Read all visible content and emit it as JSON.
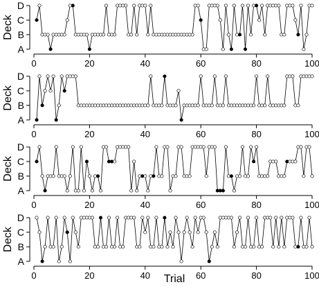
{
  "figure": {
    "ylabel": "Deck",
    "xlabel": "Trial"
  },
  "chart_data": [
    {
      "type": "line",
      "ylabel": "Deck",
      "xlabel": "",
      "y_categories": [
        "A",
        "B",
        "C",
        "D"
      ],
      "x_ticks": [
        0,
        20,
        40,
        60,
        80,
        100
      ],
      "xlim": [
        0,
        100
      ],
      "legend": "none",
      "marker_fill_legend": "filled = dark point, open = white point",
      "x": [
        1,
        2,
        3,
        4,
        5,
        6,
        7,
        8,
        9,
        10,
        11,
        12,
        13,
        14,
        15,
        16,
        17,
        18,
        19,
        20,
        21,
        22,
        23,
        24,
        25,
        26,
        27,
        28,
        29,
        30,
        31,
        32,
        33,
        34,
        35,
        36,
        37,
        38,
        39,
        40,
        41,
        42,
        43,
        44,
        45,
        46,
        47,
        48,
        49,
        50,
        51,
        52,
        53,
        54,
        55,
        56,
        57,
        58,
        59,
        60,
        61,
        62,
        63,
        64,
        65,
        66,
        67,
        68,
        69,
        70,
        71,
        72,
        73,
        74,
        75,
        76,
        77,
        78,
        79,
        80,
        81,
        82,
        83,
        84,
        85,
        86,
        87,
        88,
        89,
        90,
        91,
        92,
        93,
        94,
        95,
        96,
        97,
        98,
        99,
        100
      ],
      "y": [
        "C",
        "D",
        "B",
        "B",
        "B",
        "A",
        "B",
        "B",
        "B",
        "B",
        "B",
        "C",
        "D",
        "D",
        "B",
        "B",
        "B",
        "B",
        "B",
        "A",
        "B",
        "B",
        "B",
        "B",
        "B",
        "D",
        "B",
        "B",
        "B",
        "D",
        "D",
        "D",
        "D",
        "B",
        "B",
        "D",
        "B",
        "D",
        "D",
        "D",
        "B",
        "D",
        "B",
        "B",
        "B",
        "B",
        "B",
        "B",
        "B",
        "B",
        "B",
        "B",
        "B",
        "B",
        "B",
        "B",
        "B",
        "D",
        "D",
        "C",
        "A",
        "A",
        "D",
        "D",
        "D",
        "D",
        "C",
        "A",
        "D",
        "B",
        "A",
        "D",
        "B",
        "B",
        "D",
        "A",
        "D",
        "B",
        "D",
        "D",
        "C",
        "D",
        "B",
        "D",
        "D",
        "D",
        "D",
        "D",
        "B",
        "B",
        "D",
        "D",
        "D",
        "C",
        "B",
        "D",
        "A",
        "B",
        "D",
        "D"
      ],
      "filled": [
        true,
        false,
        false,
        false,
        false,
        true,
        false,
        false,
        false,
        false,
        false,
        false,
        false,
        true,
        false,
        false,
        false,
        false,
        false,
        true,
        false,
        false,
        false,
        false,
        false,
        false,
        false,
        false,
        false,
        false,
        false,
        false,
        false,
        false,
        false,
        false,
        false,
        false,
        false,
        false,
        false,
        false,
        false,
        false,
        false,
        false,
        false,
        false,
        false,
        false,
        false,
        false,
        false,
        false,
        false,
        false,
        false,
        false,
        false,
        true,
        false,
        false,
        false,
        false,
        false,
        false,
        false,
        false,
        false,
        false,
        true,
        false,
        false,
        true,
        false,
        true,
        false,
        false,
        false,
        true,
        false,
        false,
        false,
        false,
        false,
        false,
        false,
        false,
        false,
        false,
        false,
        false,
        false,
        false,
        true,
        false,
        false,
        false,
        false,
        false
      ]
    },
    {
      "type": "line",
      "ylabel": "Deck",
      "xlabel": "",
      "y_categories": [
        "A",
        "B",
        "C",
        "D"
      ],
      "x_ticks": [
        0,
        20,
        40,
        60,
        80,
        100
      ],
      "xlim": [
        0,
        100
      ],
      "legend": "none",
      "marker_fill_legend": "filled = dark point, open = white point",
      "x": [
        1,
        2,
        3,
        4,
        5,
        6,
        7,
        8,
        9,
        10,
        11,
        12,
        13,
        14,
        15,
        16,
        17,
        18,
        19,
        20,
        21,
        22,
        23,
        24,
        25,
        26,
        27,
        28,
        29,
        30,
        31,
        32,
        33,
        34,
        35,
        36,
        37,
        38,
        39,
        40,
        41,
        42,
        43,
        44,
        45,
        46,
        47,
        48,
        49,
        50,
        51,
        52,
        53,
        54,
        55,
        56,
        57,
        58,
        59,
        60,
        61,
        62,
        63,
        64,
        65,
        66,
        67,
        68,
        69,
        70,
        71,
        72,
        73,
        74,
        75,
        76,
        77,
        78,
        79,
        80,
        81,
        82,
        83,
        84,
        85,
        86,
        87,
        88,
        89,
        90,
        91,
        92,
        93,
        94,
        95,
        96,
        97,
        98,
        99,
        100
      ],
      "y": [
        "A",
        "D",
        "B",
        "C",
        "D",
        "C",
        "D",
        "A",
        "B",
        "D",
        "C",
        "D",
        "D",
        "D",
        "D",
        "B",
        "B",
        "B",
        "B",
        "B",
        "B",
        "B",
        "B",
        "B",
        "B",
        "B",
        "B",
        "B",
        "B",
        "B",
        "B",
        "B",
        "B",
        "B",
        "B",
        "B",
        "B",
        "B",
        "B",
        "B",
        "B",
        "D",
        "B",
        "B",
        "B",
        "B",
        "D",
        "B",
        "B",
        "B",
        "B",
        "C",
        "A",
        "B",
        "B",
        "B",
        "B",
        "B",
        "B",
        "D",
        "B",
        "B",
        "B",
        "B",
        "D",
        "B",
        "B",
        "B",
        "D",
        "B",
        "B",
        "B",
        "B",
        "B",
        "B",
        "B",
        "B",
        "B",
        "B",
        "D",
        "B",
        "B",
        "B",
        "D",
        "B",
        "B",
        "B",
        "B",
        "B",
        "B",
        "D",
        "D",
        "D",
        "B",
        "B",
        "D",
        "D",
        "D",
        "D",
        "D"
      ],
      "filled": [
        true,
        false,
        true,
        false,
        false,
        false,
        false,
        true,
        false,
        false,
        true,
        false,
        false,
        false,
        false,
        false,
        false,
        false,
        false,
        false,
        false,
        false,
        false,
        false,
        false,
        false,
        false,
        false,
        false,
        false,
        false,
        false,
        false,
        false,
        false,
        false,
        false,
        false,
        false,
        false,
        false,
        false,
        false,
        false,
        false,
        false,
        true,
        false,
        false,
        false,
        false,
        false,
        true,
        false,
        false,
        false,
        false,
        false,
        false,
        false,
        false,
        false,
        false,
        false,
        false,
        false,
        false,
        false,
        false,
        false,
        false,
        false,
        false,
        false,
        false,
        false,
        false,
        false,
        false,
        false,
        false,
        false,
        false,
        false,
        false,
        false,
        false,
        false,
        false,
        false,
        false,
        false,
        false,
        false,
        false,
        false,
        false,
        false,
        false,
        false
      ]
    },
    {
      "type": "line",
      "ylabel": "Deck",
      "xlabel": "",
      "y_categories": [
        "A",
        "B",
        "C",
        "D"
      ],
      "x_ticks": [
        0,
        20,
        40,
        60,
        80,
        100
      ],
      "xlim": [
        0,
        100
      ],
      "legend": "none",
      "marker_fill_legend": "filled = dark point, open = white point",
      "x": [
        1,
        2,
        3,
        4,
        5,
        6,
        7,
        8,
        9,
        10,
        11,
        12,
        13,
        14,
        15,
        16,
        17,
        18,
        19,
        20,
        21,
        22,
        23,
        24,
        25,
        26,
        27,
        28,
        29,
        30,
        31,
        32,
        33,
        34,
        35,
        36,
        37,
        38,
        39,
        40,
        41,
        42,
        43,
        44,
        45,
        46,
        47,
        48,
        49,
        50,
        51,
        52,
        53,
        54,
        55,
        56,
        57,
        58,
        59,
        60,
        61,
        62,
        63,
        64,
        65,
        66,
        67,
        68,
        69,
        70,
        71,
        72,
        73,
        74,
        75,
        76,
        77,
        78,
        79,
        80,
        81,
        82,
        83,
        84,
        85,
        86,
        87,
        88,
        89,
        90,
        91,
        92,
        93,
        94,
        95,
        96,
        97,
        98,
        99,
        100
      ],
      "y": [
        "C",
        "D",
        "B",
        "A",
        "B",
        "B",
        "B",
        "D",
        "B",
        "B",
        "B",
        "A",
        "B",
        "D",
        "A",
        "A",
        "D",
        "A",
        "C",
        "B",
        "A",
        "B",
        "B",
        "A",
        "D",
        "D",
        "C",
        "C",
        "C",
        "D",
        "D",
        "D",
        "D",
        "D",
        "A",
        "C",
        "A",
        "B",
        "B",
        "B",
        "A",
        "B",
        "B",
        "D",
        "B",
        "B",
        "D",
        "D",
        "A",
        "B",
        "B",
        "D",
        "D",
        "B",
        "B",
        "B",
        "D",
        "D",
        "D",
        "D",
        "D",
        "B",
        "D",
        "D",
        "D",
        "A",
        "A",
        "A",
        "D",
        "B",
        "B",
        "A",
        "B",
        "B",
        "D",
        "B",
        "B",
        "D",
        "C",
        "D",
        "B",
        "B",
        "B",
        "B",
        "C",
        "C",
        "C",
        "B",
        "B",
        "B",
        "C",
        "C",
        "C",
        "C",
        "D",
        "D",
        "B",
        "D",
        "D",
        "B"
      ],
      "filled": [
        true,
        false,
        false,
        true,
        false,
        false,
        false,
        false,
        false,
        false,
        false,
        false,
        false,
        false,
        false,
        false,
        false,
        false,
        true,
        false,
        false,
        false,
        true,
        false,
        false,
        false,
        true,
        true,
        false,
        false,
        false,
        false,
        false,
        false,
        false,
        false,
        false,
        false,
        true,
        false,
        false,
        false,
        true,
        false,
        false,
        false,
        false,
        false,
        false,
        false,
        false,
        false,
        false,
        false,
        false,
        false,
        false,
        false,
        false,
        false,
        false,
        false,
        false,
        false,
        false,
        true,
        true,
        true,
        false,
        false,
        true,
        false,
        false,
        false,
        false,
        false,
        false,
        false,
        true,
        false,
        false,
        false,
        false,
        false,
        false,
        false,
        false,
        false,
        false,
        false,
        true,
        false,
        false,
        false,
        false,
        false,
        false,
        false,
        false,
        false
      ]
    },
    {
      "type": "line",
      "ylabel": "Deck",
      "xlabel": "Trial",
      "y_categories": [
        "A",
        "B",
        "C",
        "D"
      ],
      "x_ticks": [
        0,
        20,
        40,
        60,
        80,
        100
      ],
      "xlim": [
        0,
        100
      ],
      "legend": "none",
      "marker_fill_legend": "filled = dark point, open = white point",
      "x": [
        1,
        2,
        3,
        4,
        5,
        6,
        7,
        8,
        9,
        10,
        11,
        12,
        13,
        14,
        15,
        16,
        17,
        18,
        19,
        20,
        21,
        22,
        23,
        24,
        25,
        26,
        27,
        28,
        29,
        30,
        31,
        32,
        33,
        34,
        35,
        36,
        37,
        38,
        39,
        40,
        41,
        42,
        43,
        44,
        45,
        46,
        47,
        48,
        49,
        50,
        51,
        52,
        53,
        54,
        55,
        56,
        57,
        58,
        59,
        60,
        61,
        62,
        63,
        64,
        65,
        66,
        67,
        68,
        69,
        70,
        71,
        72,
        73,
        74,
        75,
        76,
        77,
        78,
        79,
        80,
        81,
        82,
        83,
        84,
        85,
        86,
        87,
        88,
        89,
        90,
        91,
        92,
        93,
        94,
        95,
        96,
        97,
        98,
        99,
        100
      ],
      "y": [
        "D",
        "C",
        "A",
        "B",
        "D",
        "B",
        "B",
        "D",
        "A",
        "B",
        "D",
        "C",
        "A",
        "D",
        "C",
        "B",
        "D",
        "D",
        "D",
        "D",
        "D",
        "B",
        "B",
        "D",
        "B",
        "B",
        "D",
        "B",
        "B",
        "D",
        "B",
        "B",
        "D",
        "D",
        "D",
        "D",
        "B",
        "B",
        "D",
        "C",
        "D",
        "B",
        "B",
        "D",
        "B",
        "B",
        "D",
        "B",
        "C",
        "B",
        "D",
        "C",
        "A",
        "C",
        "D",
        "C",
        "B",
        "D",
        "C",
        "D",
        "D",
        "C",
        "A",
        "B",
        "C",
        "B",
        "D",
        "D",
        "D",
        "D",
        "D",
        "B",
        "C",
        "D",
        "B",
        "B",
        "D",
        "B",
        "B",
        "D",
        "B",
        "B",
        "D",
        "D",
        "D",
        "B",
        "D",
        "B",
        "D",
        "B",
        "D",
        "D",
        "D",
        "B",
        "B",
        "D",
        "B",
        "B",
        "D",
        "B"
      ],
      "filled": [
        false,
        false,
        true,
        false,
        false,
        false,
        false,
        false,
        false,
        false,
        false,
        true,
        false,
        false,
        false,
        false,
        false,
        false,
        false,
        false,
        false,
        false,
        false,
        true,
        false,
        false,
        false,
        false,
        false,
        false,
        false,
        false,
        false,
        false,
        false,
        false,
        false,
        false,
        false,
        false,
        false,
        false,
        false,
        false,
        false,
        false,
        true,
        false,
        false,
        false,
        false,
        false,
        false,
        false,
        false,
        false,
        false,
        false,
        false,
        false,
        false,
        false,
        true,
        false,
        false,
        false,
        false,
        false,
        false,
        false,
        false,
        false,
        false,
        false,
        false,
        false,
        false,
        false,
        false,
        false,
        false,
        false,
        false,
        false,
        false,
        false,
        false,
        false,
        false,
        false,
        false,
        false,
        false,
        false,
        true,
        false,
        false,
        false,
        false,
        false
      ]
    }
  ]
}
